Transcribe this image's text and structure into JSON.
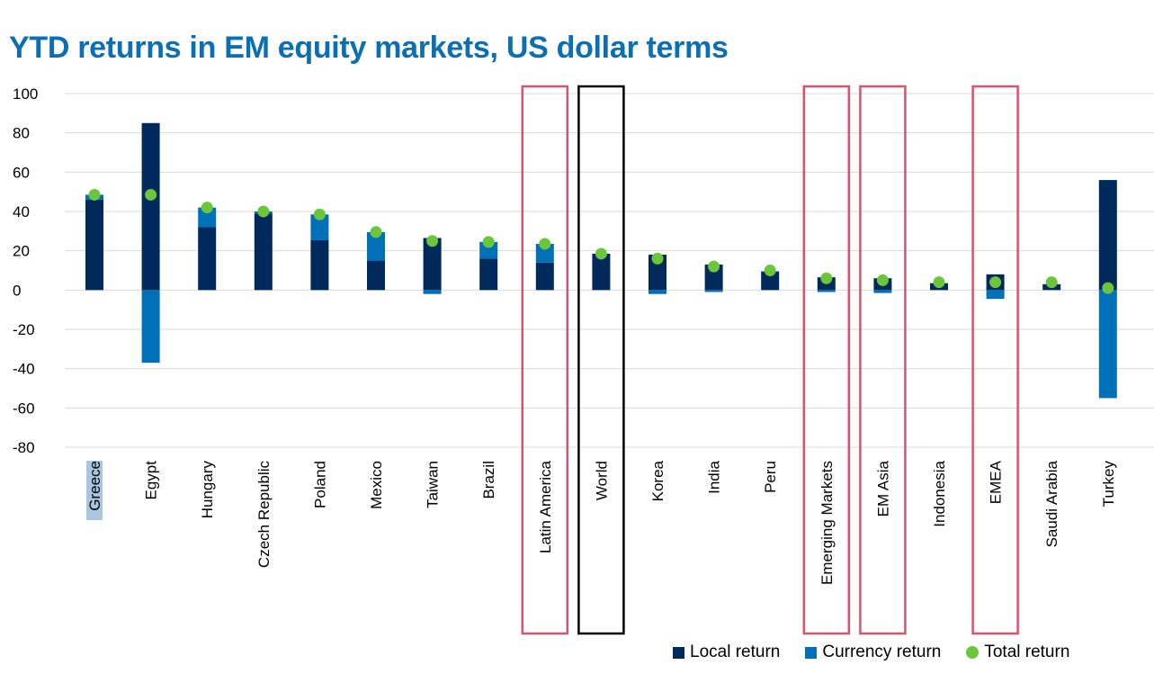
{
  "chart_data": {
    "type": "bar",
    "title": "YTD returns in EM equity markets, US dollar terms",
    "ylim": [
      -80,
      100
    ],
    "yticks": [
      100,
      80,
      60,
      40,
      20,
      0,
      -20,
      -40,
      -60,
      -80
    ],
    "grid": true,
    "stacked": true,
    "legend_position": "bottom-right",
    "categories": [
      "Greece",
      "Egypt",
      "Hungary",
      "Czech Republic",
      "Poland",
      "Mexico",
      "Taiwan",
      "Brazil",
      "Latin America",
      "World",
      "Korea",
      "India",
      "Peru",
      "Emerging Markets",
      "EM Asia",
      "Indonesia",
      "EMEA",
      "Saudi Arabia",
      "Turkey"
    ],
    "series": [
      {
        "name": "Local return",
        "type": "bar",
        "color": "#002a5c",
        "values": [
          46,
          85,
          32,
          39,
          25.5,
          15,
          26.5,
          16,
          14,
          18.5,
          18,
          13,
          9.5,
          6.5,
          6,
          3.5,
          8,
          3,
          56
        ]
      },
      {
        "name": "Currency return",
        "type": "bar",
        "color": "#0070b8",
        "values": [
          2.5,
          -37,
          10,
          1,
          13,
          14.5,
          -2,
          8.5,
          9.5,
          0,
          -2,
          -1,
          0,
          -1,
          -1.5,
          0,
          -4.5,
          0,
          -55
        ]
      },
      {
        "name": "Total return",
        "type": "scatter",
        "color": "#6cc63c",
        "values": [
          48.5,
          48.5,
          42,
          40,
          38.5,
          29.5,
          25,
          24.5,
          23.5,
          18.5,
          16,
          12,
          10,
          6,
          5,
          4,
          4,
          4,
          1
        ]
      }
    ],
    "highlighted": {
      "pink": [
        "Latin America",
        "Emerging Markets",
        "EM Asia",
        "EMEA"
      ],
      "black": [
        "World"
      ],
      "label_highlight": [
        "Greece"
      ],
      "pink_color": "#d9536e",
      "black_color": "#000000",
      "label_highlight_color": "#a9c6e0"
    }
  }
}
